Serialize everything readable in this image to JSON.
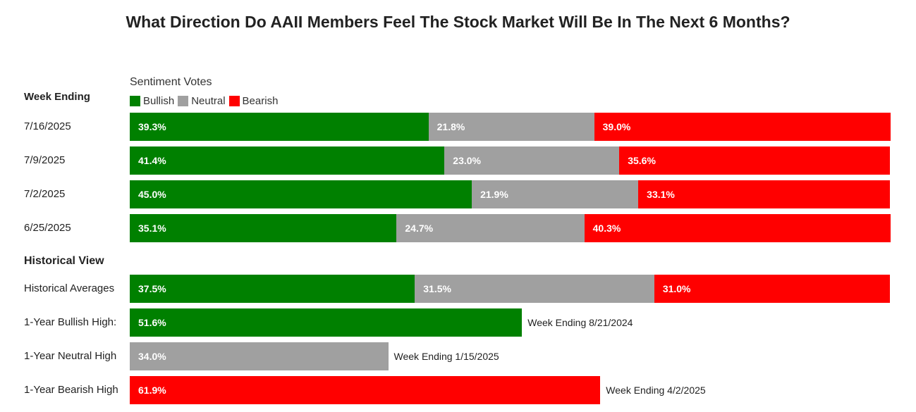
{
  "title": "What Direction Do AAII Members Feel The Stock Market Will Be In The Next 6 Months?",
  "sentiment_label": "Sentiment Votes",
  "week_ending_label": "Week Ending",
  "historical_label": "Historical View",
  "legend": [
    {
      "name": "Bullish",
      "color": "#008000"
    },
    {
      "name": "Neutral",
      "color": "#a0a0a0"
    },
    {
      "name": "Bearish",
      "color": "#ff0000"
    }
  ],
  "chart_data": {
    "type": "bar",
    "stacked": true,
    "orientation": "horizontal",
    "title": "What Direction Do AAII Members Feel The Stock Market Will Be In The Next 6 Months?",
    "legend_title": "Sentiment Votes",
    "legend_position": "top-left",
    "unit": "%",
    "weekly": {
      "categories": [
        "7/16/2025",
        "7/9/2025",
        "7/2/2025",
        "6/25/2025"
      ],
      "series": [
        {
          "name": "Bullish",
          "values": [
            39.3,
            41.4,
            45.0,
            35.1
          ],
          "labels": [
            "39.3%",
            "41.4%",
            "45.0%",
            "35.1%"
          ]
        },
        {
          "name": "Neutral",
          "values": [
            21.8,
            23.0,
            21.9,
            24.7
          ],
          "labels": [
            "21.8%",
            "23.0%",
            "21.9%",
            "24.7%"
          ]
        },
        {
          "name": "Bearish",
          "values": [
            39.0,
            35.6,
            33.1,
            40.3
          ],
          "labels": [
            "39.0%",
            "35.6%",
            "33.1%",
            "40.3%"
          ]
        }
      ]
    },
    "historical_averages": {
      "category": "Historical Averages",
      "series": [
        {
          "name": "Bullish",
          "value": 37.5,
          "label": "37.5%"
        },
        {
          "name": "Neutral",
          "value": 31.5,
          "label": "31.5%"
        },
        {
          "name": "Bearish",
          "value": 31.0,
          "label": "31.0%"
        }
      ]
    },
    "one_year_highs": [
      {
        "category": "1-Year Bullish High:",
        "series": "Bullish",
        "value": 51.6,
        "label": "51.6%",
        "note": "Week Ending 8/21/2024"
      },
      {
        "category": "1-Year Neutral High",
        "series": "Neutral",
        "value": 34.0,
        "label": "34.0%",
        "note": "Week Ending 1/15/2025"
      },
      {
        "category": "1-Year Bearish High",
        "series": "Bearish",
        "value": 61.9,
        "label": "61.9%",
        "note": "Week Ending 4/2/2025"
      }
    ]
  }
}
